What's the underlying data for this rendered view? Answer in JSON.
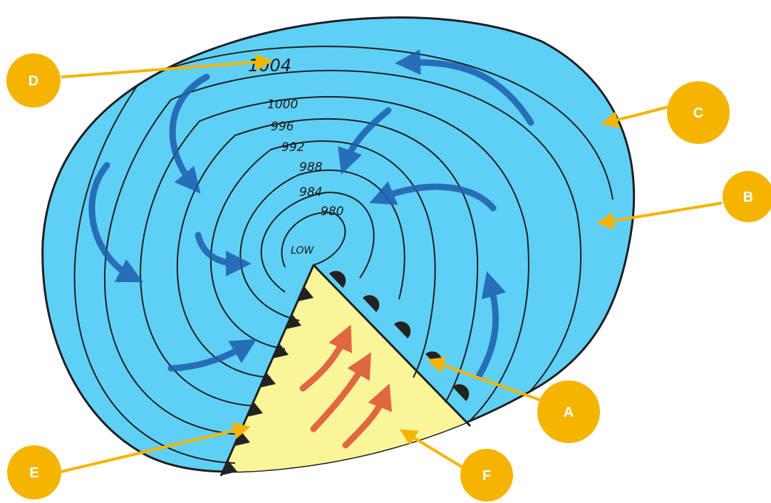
{
  "colors": {
    "cold_air": "#5fd0f5",
    "warm_sector": "#fbf59a",
    "isobar": "#1f1f1f",
    "flow_arrow": "#1d5fae",
    "warm_arrow": "#d9462a",
    "callout": "#f5b400",
    "front_pip": "#222222"
  },
  "isobars": {
    "p1004": "1004",
    "p1000": "1000",
    "p996": "996",
    "p992": "992",
    "p988": "988",
    "p984": "984",
    "p980": "980",
    "center": "LOW"
  },
  "callouts": {
    "a": "A",
    "b": "B",
    "c": "C",
    "d": "D",
    "e": "E",
    "f": "F"
  }
}
